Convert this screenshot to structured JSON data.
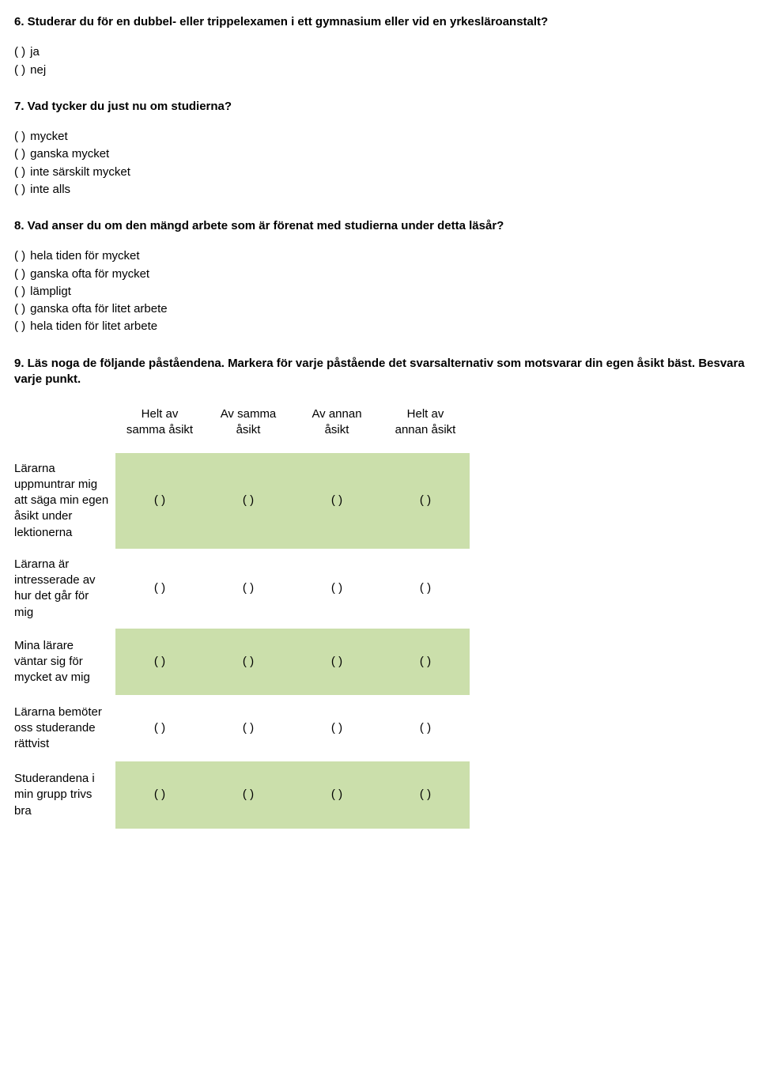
{
  "q6": {
    "title": "6. Studerar du för en dubbel- eller trippelexamen i ett gymnasium eller vid en yrkesläroanstalt?",
    "options": [
      "ja",
      "nej"
    ]
  },
  "q7": {
    "title": "7. Vad tycker du just nu om studierna?",
    "options": [
      "mycket",
      "ganska mycket",
      "inte särskilt mycket",
      "inte alls"
    ]
  },
  "q8": {
    "title": "8. Vad anser du om den mängd arbete som är förenat med studierna under detta läsår?",
    "options": [
      "hela tiden för mycket",
      "ganska ofta för mycket",
      "lämpligt",
      "ganska ofta för litet arbete",
      "hela tiden för litet arbete"
    ]
  },
  "q9": {
    "title": "9. Läs noga de följande påståendena. Markera för varje påstående det svarsalternativ som motsvarar din egen åsikt bäst. Besvara varje punkt.",
    "columns": [
      "Helt av samma åsikt",
      "Av samma åsikt",
      "Av annan åsikt",
      "Helt av annan åsikt"
    ],
    "rows": [
      "Lärarna uppmuntrar mig att säga min egen åsikt under lektionerna",
      "Lärarna är intresserade av hur det går för mig",
      "Mina lärare väntar sig för mycket av mig",
      "Lärarna bemöter oss studerande rättvist",
      "Studerandena i min grupp trivs bra"
    ],
    "cell": "( )",
    "colors": {
      "odd_bg": "#cbdfab",
      "even_bg": "#ffffff"
    }
  },
  "paren": "( )"
}
